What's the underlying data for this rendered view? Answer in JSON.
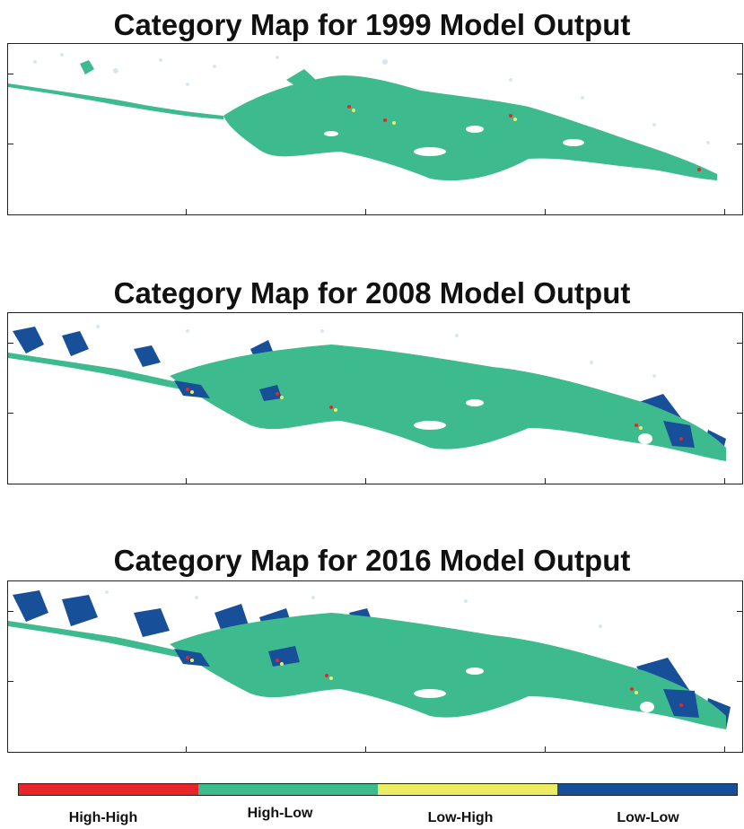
{
  "maps": [
    {
      "title": "Category Map for 1999 Model Output",
      "year": "1999"
    },
    {
      "title": "Category Map for 2008 Model Output",
      "year": "2008"
    },
    {
      "title": "Category Map for 2016 Model Output",
      "year": "2016"
    }
  ],
  "legend": {
    "items": [
      {
        "label": "High-High",
        "color": "#e8262a"
      },
      {
        "label": "High-Low",
        "color": "#3dbb8e"
      },
      {
        "label": "Low-High",
        "color": "#eded64"
      },
      {
        "label": "Low-Low",
        "color": "#174f98"
      }
    ]
  }
}
